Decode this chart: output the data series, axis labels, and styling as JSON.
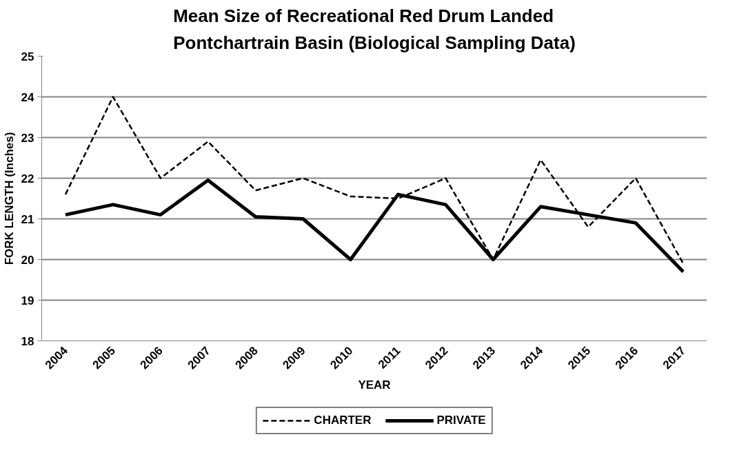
{
  "chart_data": {
    "type": "line",
    "title": "Mean Size of Recreational Red Drum Landed\nPontchartrain Basin (Biological Sampling Data)",
    "xlabel": "YEAR",
    "ylabel": "FORK LENGTH (Inches)",
    "categories": [
      "2004",
      "2005",
      "2006",
      "2007",
      "2008",
      "2009",
      "2010",
      "2011",
      "2012",
      "2013",
      "2014",
      "2015",
      "2016",
      "2017"
    ],
    "series": [
      {
        "name": "CHARTER",
        "color": "#000000",
        "line_style": "dashed",
        "values": [
          21.6,
          24.0,
          22.0,
          22.9,
          21.7,
          22.0,
          21.55,
          21.5,
          22.0,
          20.0,
          22.45,
          20.8,
          22.0,
          19.9
        ]
      },
      {
        "name": "PRIVATE",
        "color": "#000000",
        "line_style": "solid",
        "values": [
          21.1,
          21.35,
          21.1,
          21.95,
          21.05,
          21.0,
          20.0,
          21.6,
          21.35,
          20.0,
          21.3,
          21.1,
          20.9,
          19.7
        ]
      }
    ],
    "ylim": [
      18,
      25
    ],
    "yticks": [
      18,
      19,
      20,
      21,
      22,
      23,
      24,
      25
    ],
    "grid": "y",
    "legend": "bottom",
    "marker": "none"
  }
}
